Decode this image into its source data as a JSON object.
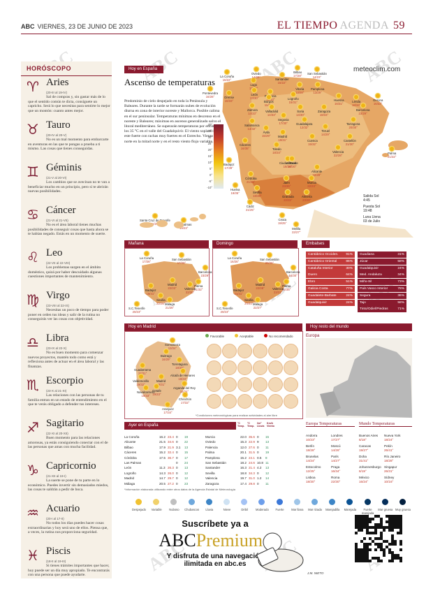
{
  "header": {
    "brand": "ABC",
    "date": "VIERNES, 23 DE JUNIO DE 2023",
    "section": "EL TIEMPO",
    "subsection": "AGENDA",
    "page": "59"
  },
  "watermark": "ABC",
  "horoscope": {
    "title": "HORÓSCOPO",
    "signs": [
      {
        "symbol": "♈",
        "name": "Aries",
        "dates": "(20-III al 19-IV)",
        "text": "Sal de compras y, sin gastar más de lo que el sentido común te dicta, consíguete un capricho. Será lo que necesitas para sentirte lo mejor que un montón: cuanto antes mejor."
      },
      {
        "symbol": "♉",
        "name": "Tauro",
        "dates": "(20-IV al 20-V)",
        "text": "No es un mal momento para embarcarte en aventuras en las que te pongas a prueba a ti mismo. Las cosas que tienes conseguidas."
      },
      {
        "symbol": "♊",
        "name": "Géminis",
        "dates": "(21-V al 20-VI)",
        "text": "Los cambios que se avecinan no te van a beneficiar mucho en un principio, pero sí te abrirán nuevas posibilidades."
      },
      {
        "symbol": "♋",
        "name": "Cáncer",
        "dates": "(21-VI al 21-VII)",
        "text": "No es el área laboral tienes muchas posibilidades de conseguir cosas que hasta ahora se te habían negado. Estás en un momento de suerte."
      },
      {
        "symbol": "♌",
        "name": "Leo",
        "dates": "(22-VII al 22-VIII)",
        "text": "Los problemas surgen en el ámbito doméstico, quizá por haber descuidado algunas cuestiones importantes de mantenimiento."
      },
      {
        "symbol": "♍",
        "name": "Virgo",
        "dates": "(23-VIII al 22-IX)",
        "text": "Necesitas un poco de tiempo para poder poner en orden tus ideas y salir de la rutina no conseguirás ver las cosas con objetividad."
      },
      {
        "symbol": "♎",
        "name": "Libra",
        "dates": "(23-IX al 22-X)",
        "text": "No es buen momento para comenzar nuevos proyectos, mantén todo como está y reflexiona antes de actuar en el área laboral y las finanzas."
      },
      {
        "symbol": "♏",
        "name": "Escorpio",
        "dates": "(23-X al 21-XI)",
        "text": "Las relaciones con las personas de tu familia entran en un estado de entendimiento en el que te verás obligado a defender tus intereses."
      },
      {
        "symbol": "♐",
        "name": "Sagitario",
        "dates": "(22-XI al 20-XII)",
        "text": "Buen momento para las relaciones amorosas, ya estás consiguiendo conectar con el de las personas que amas con mucha facilidad."
      },
      {
        "symbol": "♑",
        "name": "Capricornio",
        "dates": "(21-XII al 19-I)",
        "text": "La suerte se pone de tu parte en lo económico. Puedes invertir sin demasiados miedos, las cosas te saldrán a pedir de boca."
      },
      {
        "symbol": "♒",
        "name": "Acuario",
        "dates": "(20-I al 17-II)",
        "text": "No todos los días puedes hacer cosas extraordinarias y hoy será uno de ellos. Piensa que, a veces, la rutina nos proporciona seguridad."
      },
      {
        "symbol": "♓",
        "name": "Piscis",
        "dates": "(18-II al 19-III)",
        "text": "Si tienes trámites importantes que hacer, hoy puede ser un día muy apropiado. Te encontrarás con una persona que puede ayudarte."
      }
    ]
  },
  "today": {
    "bar": "Hoy en España",
    "title": "Ascenso de temperaturas",
    "site": "meteoclim.com",
    "text": "Predominio de cielo despejado en toda la Península y Baleares. Durante la tarde se formarán nubes de evolución diurna en zona de interior noreste y Mallorca. Posible calima en el sur peninsular. Temperaturas mínimas en descenso en el noreste y Baleares; máximas en ascenso generalizado salvo el litoral mediterráneo. Se superarán temperaturas por encima de los 35 °C en el valle del Guadalquivir. El viento soplará del este fuerte con rachas muy fuertes en el Estrecho. Viento del norte en la mitad norte y en el resto viento flojo variable.",
    "scale": [
      "40°",
      "35°",
      "30°",
      "25°",
      "20°",
      "15°",
      "10°",
      "5°",
      "0°",
      "-5°",
      "-10°"
    ],
    "cities": [
      {
        "n": "La Coruña",
        "t": "16/22°"
      },
      {
        "n": "Lugo",
        "t": "13/26°"
      },
      {
        "n": "Oviedo",
        "t": "14/20°"
      },
      {
        "n": "Santander",
        "t": "16/22°"
      },
      {
        "n": "Bilbao",
        "t": "17/28°"
      },
      {
        "n": "San Sebastián",
        "t": "14/23°"
      },
      {
        "n": "Pontevedra",
        "t": "16/26°"
      },
      {
        "n": "Orense",
        "t": "16/33°"
      },
      {
        "n": "León",
        "t": "13/30°"
      },
      {
        "n": "Palencia",
        "t": "12/33°"
      },
      {
        "n": "Burgos",
        "t": "11/29°"
      },
      {
        "n": "Vitoria",
        "t": "13/28°"
      },
      {
        "n": "Pamplona",
        "t": "13/29°"
      },
      {
        "n": "Logroño",
        "t": "15/31°"
      },
      {
        "n": "Huesca",
        "t": "16/31°"
      },
      {
        "n": "Lérida",
        "t": "18/34°"
      },
      {
        "n": "Gerona",
        "t": "16/32°"
      },
      {
        "n": "Barcelona",
        "t": "23/29°"
      },
      {
        "n": "Zamora",
        "t": "14/33°"
      },
      {
        "n": "Valladolid",
        "t": "14/33°"
      },
      {
        "n": "Soria",
        "t": "14/30°"
      },
      {
        "n": "Zaragoza",
        "t": "18/34°"
      },
      {
        "n": "Tarragona",
        "t": "20/30°"
      },
      {
        "n": "Salamanca",
        "t": "14/32°"
      },
      {
        "n": "Segovia",
        "t": "17/30°"
      },
      {
        "n": "Guadalajara",
        "t": "12/32°"
      },
      {
        "n": "Teruel",
        "t": "14/29°"
      },
      {
        "n": "Castellón",
        "t": "21/30°"
      },
      {
        "n": "Ávila",
        "t": "15/29°"
      },
      {
        "n": "Madrid",
        "t": "19/31°"
      },
      {
        "n": "Cuenca",
        "t": "15/32°"
      },
      {
        "n": "Palma",
        "t": "21/32°"
      },
      {
        "n": "Cáceres",
        "t": "16/35°"
      },
      {
        "n": "Toledo",
        "t": "18/34°"
      },
      {
        "n": "Valencia",
        "t": "22/28°"
      },
      {
        "n": "Badajoz",
        "t": "17/39°"
      },
      {
        "n": "Ciudad Real",
        "t": "18/36°"
      },
      {
        "n": "Albacete",
        "t": "16/30°"
      },
      {
        "n": "Alicante",
        "t": "22/28°"
      },
      {
        "n": "Córdoba",
        "t": "21/39°"
      },
      {
        "n": "Jaén",
        "t": "23/36°"
      },
      {
        "n": "Murcia",
        "t": "22/33°"
      },
      {
        "n": "Huelva",
        "t": "19/35°"
      },
      {
        "n": "Sevilla",
        "t": "18/38°"
      },
      {
        "n": "Granada",
        "t": "22/33°"
      },
      {
        "n": "Almería",
        "t": "23/30°"
      },
      {
        "n": "Cádiz",
        "t": "21/25°"
      },
      {
        "n": "Ceuta",
        "t": "19/25°"
      },
      {
        "n": "Melilla",
        "t": "22/27°"
      },
      {
        "n": "Santa Cruz de Tenerife",
        "t": "21/23°"
      },
      {
        "n": "Las Palmas",
        "t": "19/23°"
      }
    ],
    "sun": {
      "rise_label": "Salida Sol",
      "rise": "4:45",
      "set_label": "Puesta Sol",
      "set": "19:48",
      "moon_label": "Luna Llena",
      "moon": "03 de Julio"
    }
  },
  "tomorrow": {
    "bar": "Mañana",
    "cities": [
      {
        "n": "La Coruña",
        "t": "17/26°"
      },
      {
        "n": "San Sebastián",
        "t": "17/28°"
      },
      {
        "n": "Barcelona",
        "t": "23/29°"
      },
      {
        "n": "Madrid",
        "t": "22/33°"
      },
      {
        "n": "Palma",
        "t": "21/32°"
      },
      {
        "n": "Valencia",
        "t": "22/30°"
      },
      {
        "n": "Badajoz",
        "t": "19/41°"
      },
      {
        "n": "Sevilla",
        "t": "22/36°"
      },
      {
        "n": "Málaga",
        "t": "21/26°"
      },
      {
        "n": "S.C.Tenerife",
        "t": "20/23°"
      }
    ]
  },
  "sunday": {
    "bar": "Domingo",
    "cities": [
      {
        "n": "La Coruña",
        "t": "16/26°"
      },
      {
        "n": "San Sebastián",
        "t": "20/26°"
      },
      {
        "n": "Barcelona",
        "t": "24/30°"
      },
      {
        "n": "Madrid",
        "t": "22/38°"
      },
      {
        "n": "Palma",
        "t": "22/35°"
      },
      {
        "n": "Valencia",
        "t": "23/31°"
      },
      {
        "n": "Badajoz",
        "t": "21/41°"
      },
      {
        "n": "Sevilla",
        "t": "24/40°"
      },
      {
        "n": "Málaga",
        "t": "22/27°"
      },
      {
        "n": "S.C.Tenerife",
        "t": "20/23°"
      }
    ]
  },
  "reservoirs": {
    "bar": "Embalses",
    "rows": [
      {
        "n": "Cantábrico Occiden.",
        "v": "91%"
      },
      {
        "n": "Guadiana",
        "v": "31%"
      },
      {
        "n": "Cantábrico Oriental",
        "v": "86%"
      },
      {
        "n": "Júcar",
        "v": "58%"
      },
      {
        "n": "Cataluña Interior",
        "v": "30%"
      },
      {
        "n": "Guadalquivir",
        "v": "24%"
      },
      {
        "n": "Duero",
        "v": "64%"
      },
      {
        "n": "Med. Andaluza",
        "v": "34%"
      },
      {
        "n": "Ebro",
        "v": "51%"
      },
      {
        "n": "Miño-Sil",
        "v": "73%"
      },
      {
        "n": "Galicia Costa",
        "v": "77%"
      },
      {
        "n": "País Vasco Interior",
        "v": "78%"
      },
      {
        "n": "Guadalete-Barbate",
        "v": "24%"
      },
      {
        "n": "Segura",
        "v": "36%"
      },
      {
        "n": "Guadalquivir",
        "v": "24%"
      },
      {
        "n": "Tajo",
        "v": "58%"
      },
      {
        "n": "",
        "v": ""
      },
      {
        "n": "Tinto/Odiel/Piedras",
        "v": "71%"
      }
    ]
  },
  "madrid": {
    "bar": "Hoy en Madrid",
    "legend": [
      "Favorable",
      "Aceptable",
      "No recomendado"
    ],
    "towns": [
      {
        "n": "Somosierra",
        "t": "13/24°"
      },
      {
        "n": "Buitrago",
        "t": "16/29°"
      },
      {
        "n": "Torrelaguna",
        "t": "18/30°"
      },
      {
        "n": "Guadarrama",
        "t": "18/31°"
      },
      {
        "n": "Alcalá de Henares",
        "t": "18/33°"
      },
      {
        "n": "Valdemorillo",
        "t": "19/32°"
      },
      {
        "n": "Madrid",
        "t": "19/31°"
      },
      {
        "n": "Navalcarnero",
        "t": "18/33°"
      },
      {
        "n": "Getafe",
        "t": "19/33°"
      },
      {
        "n": "Arganda del Rey",
        "t": "16/34°"
      },
      {
        "n": "Chinchón",
        "t": "17/32°"
      },
      {
        "n": "Aranjuez",
        "t": "17/34°"
      }
    ],
    "note": "*Condiciones meteorológicas para realizar actividades al aire libre"
  },
  "world_today": {
    "bar": "Hoy resto del mundo",
    "region": "Europa"
  },
  "yesterday": {
    "bar": "Ayer en España",
    "head": [
      "°C Temp.",
      "°C Temp.",
      "l/m² Lluvia",
      "Km/h Viento"
    ],
    "left": [
      [
        "La Coruña",
        "16.2",
        "23.4",
        "0",
        "19"
      ],
      [
        "Alicante",
        "21.5",
        "34.6",
        "0",
        "22"
      ],
      [
        "Bilbao",
        "17.9",
        "21.9",
        "3.1",
        "13"
      ],
      [
        "Cáceres",
        "15.2",
        "32.4",
        "0",
        "15"
      ],
      [
        "Córdoba",
        "17.5",
        "36.7",
        "0",
        "17"
      ],
      [
        "Las Palmas",
        "",
        "",
        "0",
        "24"
      ],
      [
        "León",
        "11.3",
        "26.3",
        "0",
        "13"
      ],
      [
        "Logroño",
        "14.3",
        "26.0",
        "0",
        "12"
      ],
      [
        "Madrid",
        "14.7",
        "29.7",
        "0",
        "12"
      ],
      [
        "Málaga",
        "20.5",
        "27.2",
        "0",
        "23"
      ]
    ],
    "right": [
      [
        "Murcia",
        "22.0",
        "35.6",
        "0",
        "15"
      ],
      [
        "Oviedo",
        "15.3",
        "22.9",
        "9",
        "13"
      ],
      [
        "Palencia",
        "12.0",
        "27.6",
        "0",
        "11"
      ],
      [
        "Palma",
        "20.1",
        "31.5",
        "0",
        "19"
      ],
      [
        "Pamplona",
        "15.2",
        "24.1",
        "0.5",
        "8"
      ],
      [
        "San Sebastián",
        "18.2",
        "24.6",
        "10.8",
        "11"
      ],
      [
        "Santander",
        "16.3",
        "21.4",
        "4.2",
        "13"
      ],
      [
        "Sevilla",
        "18.8",
        "34.3",
        "0",
        "12"
      ],
      [
        "Valencia",
        "19.7",
        "31.0",
        "1.2",
        "14"
      ],
      [
        "Zaragoza",
        "17.4",
        "29.8",
        "0",
        "11"
      ]
    ],
    "note": "*Información elaborada utilizando entre otros datos de la Agencia Estatal de Meteorología"
  },
  "europe_temps": {
    "title": "Europa Temperaturas",
    "rows": [
      [
        "Andorra",
        "10/23°",
        "Londres",
        "17/27°"
      ],
      [
        "Berlín",
        "18/28°",
        "Moscú",
        "14/26°"
      ],
      [
        "Bruselas",
        "14/24°",
        "París",
        "14/27°"
      ],
      [
        "Estocolmo",
        "12/25°",
        "Praga",
        "16/34°"
      ],
      [
        "Lisboa",
        "18/30°",
        "Roma",
        "22/30°"
      ]
    ]
  },
  "world_temps": {
    "title": "Mundo Temperaturas",
    "rows": [
      [
        "Buenos Aires",
        "8/18°",
        "Nueva York",
        "18/24°"
      ],
      [
        "Caracas",
        "19/27°",
        "Pekín",
        "26/41°"
      ],
      [
        "Doha",
        "31/41°",
        "Río Janeiro",
        "18/28°"
      ],
      [
        "Johannesburgo",
        "8/19°",
        "Singapur",
        "26/31°"
      ],
      [
        "México",
        "16/24°",
        "Sídney",
        "10/16°"
      ]
    ]
  },
  "icons": [
    "Despejado",
    "Variable",
    "Nuboso",
    "Chubascos",
    "Lluvia",
    "Nieve",
    "Débil",
    "Moderado",
    "Fuerte",
    "Mar llana",
    "Mar rizada",
    "Marejadilla",
    "Marejada",
    "Fuerte marejada",
    "Mar gruesa",
    "Muy gruesa"
  ],
  "ad": {
    "l1": "Suscríbete ya a",
    "brand1": "ABC",
    "brand2": "Premium",
    "l2": "Y disfruta de una navegación",
    "l3": "ilimitada en abc.es",
    "signature": "J.M. NIETO"
  },
  "colors": {
    "accent": "#8a1a2e",
    "map_warm": "#e8b26e",
    "horo_bg": "#f6f0e6"
  }
}
